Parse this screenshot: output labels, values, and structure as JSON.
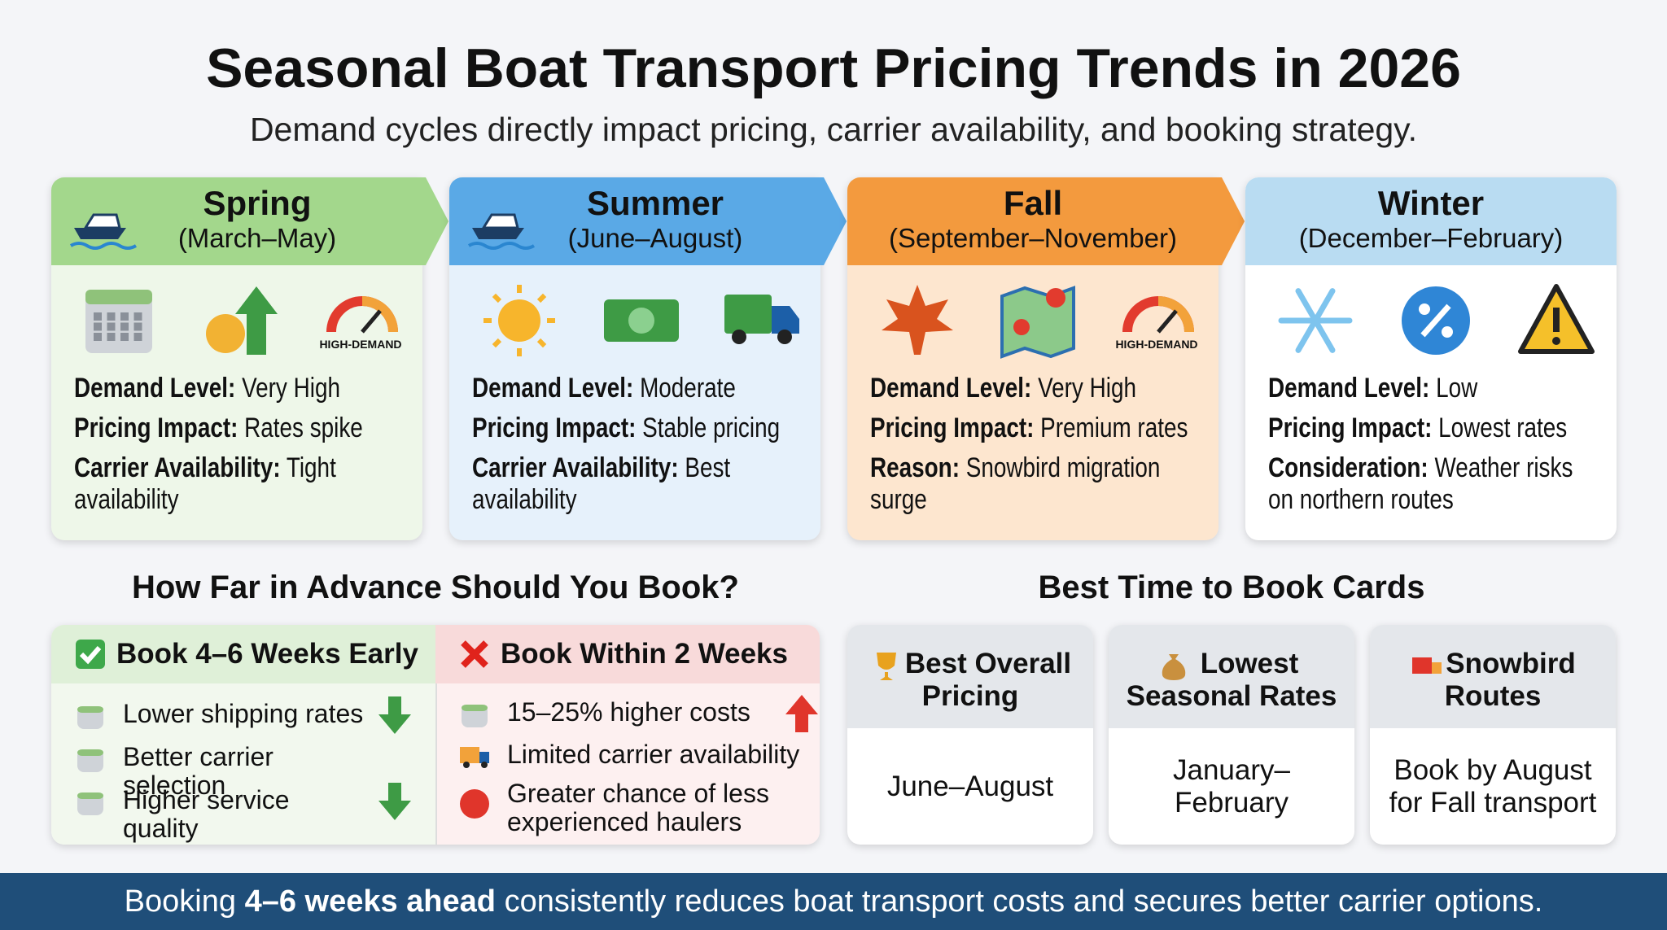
{
  "header": {
    "title": "Seasonal Boat Transport Pricing Trends in 2026",
    "subtitle": "Demand cycles directly impact pricing, carrier availability, and booking strategy."
  },
  "seasons": [
    {
      "name": "Spring",
      "months": "(March–May)",
      "badge": "HIGH-DEMAND",
      "items": [
        {
          "label": "Demand Level:",
          "text": "Very High"
        },
        {
          "label": "Pricing Impact:",
          "text": "Rates spike"
        },
        {
          "label": "Carrier Availability:",
          "text": "Tight availability"
        }
      ]
    },
    {
      "name": "Summer",
      "months": "(June–August)",
      "items": [
        {
          "label": "Demand Level:",
          "text": "Moderate"
        },
        {
          "label": "Pricing Impact:",
          "text": "Stable pricing"
        },
        {
          "label": "Carrier Availability:",
          "text": "Best availability"
        }
      ]
    },
    {
      "name": "Fall",
      "months": "(September–November)",
      "badge": "HIGH-DEMAND",
      "items": [
        {
          "label": "Demand Level:",
          "text": "Very High"
        },
        {
          "label": "Pricing Impact:",
          "text": "Premium rates"
        },
        {
          "label": "Reason:",
          "text": "Snowbird migration surge"
        }
      ]
    },
    {
      "name": "Winter",
      "months": "(December–February)",
      "items": [
        {
          "label": "Demand Level:",
          "text": "Low"
        },
        {
          "label": "Pricing Impact:",
          "text": "Lowest rates"
        },
        {
          "label": "Consideration:",
          "text": "Weather risks on northern routes"
        }
      ]
    }
  ],
  "advance": {
    "title": "How Far in Advance Should You Book?",
    "columns": [
      {
        "heading": "Book 4–6 Weeks Early",
        "items": [
          "Lower shipping rates",
          "Better carrier selection",
          "Higher service quality"
        ]
      },
      {
        "heading": "Book Within 2 Weeks",
        "items": [
          "15–25% higher costs",
          "Limited carrier availability",
          "Greater chance of less experienced haulers"
        ]
      }
    ]
  },
  "best": {
    "title": "Best Time to Book Cards",
    "cards": [
      {
        "title": "Best Overall Pricing",
        "text": "June–August"
      },
      {
        "title": "Lowest Seasonal Rates",
        "text": "January–February"
      },
      {
        "title": "Snowbird Routes",
        "text": "Book by August for Fall transport"
      }
    ]
  },
  "footer": {
    "lead": "Booking",
    "emphasis": "4–6 weeks ahead",
    "rest": "consistently reduces boat transport costs and secures better carrier options."
  }
}
